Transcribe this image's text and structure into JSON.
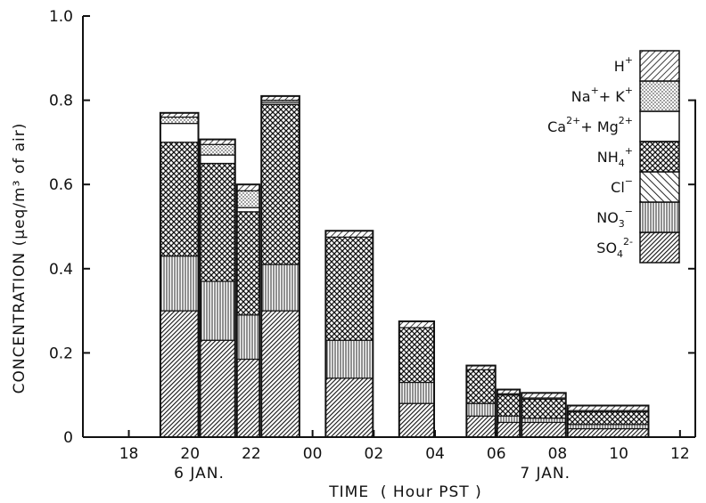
{
  "chart_data": {
    "type": "bar",
    "stacked": true,
    "title": "",
    "xlabel": "TIME  ( Hour PST )",
    "ylabel": "CONCENTRATION (μeq/m³ of air)",
    "ylim": [
      0,
      1.0
    ],
    "xlim": [
      16.5,
      36.5
    ],
    "x_tick_values": [
      18,
      20,
      22,
      24,
      26,
      28,
      30,
      32,
      34,
      36
    ],
    "x_tick_labels": [
      "18",
      "20",
      "22",
      "00",
      "02",
      "04",
      "06",
      "08",
      "10",
      "12"
    ],
    "y_tick_values": [
      0,
      0.2,
      0.4,
      0.6,
      0.8,
      1.0
    ],
    "y_tick_labels": [
      "0",
      "0.2",
      "0.4",
      "0.6",
      "0.8",
      "1.0"
    ],
    "date_labels": [
      {
        "text": "6 JAN.",
        "x": 20.3
      },
      {
        "text": "7 JAN.",
        "x": 31.6
      }
    ],
    "grid": false,
    "legend_position": "top-right",
    "bars": [
      {
        "start": 19.0,
        "end": 20.3
      },
      {
        "start": 20.3,
        "end": 21.5
      },
      {
        "start": 21.5,
        "end": 22.3
      },
      {
        "start": 22.3,
        "end": 23.6
      },
      {
        "start": 24.4,
        "end": 26.0
      },
      {
        "start": 26.8,
        "end": 28.0
      },
      {
        "start": 29.0,
        "end": 30.0
      },
      {
        "start": 30.0,
        "end": 30.8
      },
      {
        "start": 30.8,
        "end": 32.3
      },
      {
        "start": 32.3,
        "end": 35.0
      }
    ],
    "series": [
      {
        "name": "SO4 2-",
        "label": "SO",
        "sub": "4",
        "sup": "2-",
        "pattern": "dense",
        "values": [
          0.3,
          0.23,
          0.185,
          0.3,
          0.14,
          0.08,
          0.05,
          0.035,
          0.035,
          0.02
        ]
      },
      {
        "name": "NO3 -",
        "label": "NO",
        "sub": "3",
        "sup": "−",
        "pattern": "vert",
        "values": [
          0.13,
          0.14,
          0.105,
          0.11,
          0.09,
          0.05,
          0.03,
          0.015,
          0.01,
          0.01
        ]
      },
      {
        "name": "Cl -",
        "label": "Cl",
        "sub": "",
        "sup": "−",
        "pattern": "diag",
        "values": [
          0.0,
          0.0,
          0.0,
          0.0,
          0.0,
          0.0,
          0.0,
          0.0,
          0.0,
          0.0
        ]
      },
      {
        "name": "NH4 +",
        "label": "NH",
        "sub": "4",
        "sup": "+",
        "pattern": "cross",
        "values": [
          0.27,
          0.28,
          0.245,
          0.38,
          0.245,
          0.13,
          0.08,
          0.05,
          0.045,
          0.03
        ]
      },
      {
        "name": "Ca2+ + Mg2+",
        "label": "Ca",
        "sub": "",
        "sup": "2+",
        "label2": "+ Mg",
        "sup2": "2+",
        "pattern": "blank",
        "values": [
          0.045,
          0.02,
          0.01,
          0.005,
          0.0,
          0.0,
          0.0,
          0.003,
          0.003,
          0.003
        ]
      },
      {
        "name": "Na+ + K+",
        "label": "Na",
        "sub": "",
        "sup": "+",
        "label2": "+ K",
        "sup2": "+",
        "pattern": "dots",
        "values": [
          0.015,
          0.025,
          0.04,
          0.005,
          0.0,
          0.0,
          0.0,
          0.0,
          0.0,
          0.0
        ]
      },
      {
        "name": "H+",
        "label": "H",
        "sub": "",
        "sup": "+",
        "pattern": "hplus",
        "values": [
          0.01,
          0.012,
          0.015,
          0.01,
          0.015,
          0.015,
          0.01,
          0.01,
          0.012,
          0.012
        ]
      }
    ]
  }
}
